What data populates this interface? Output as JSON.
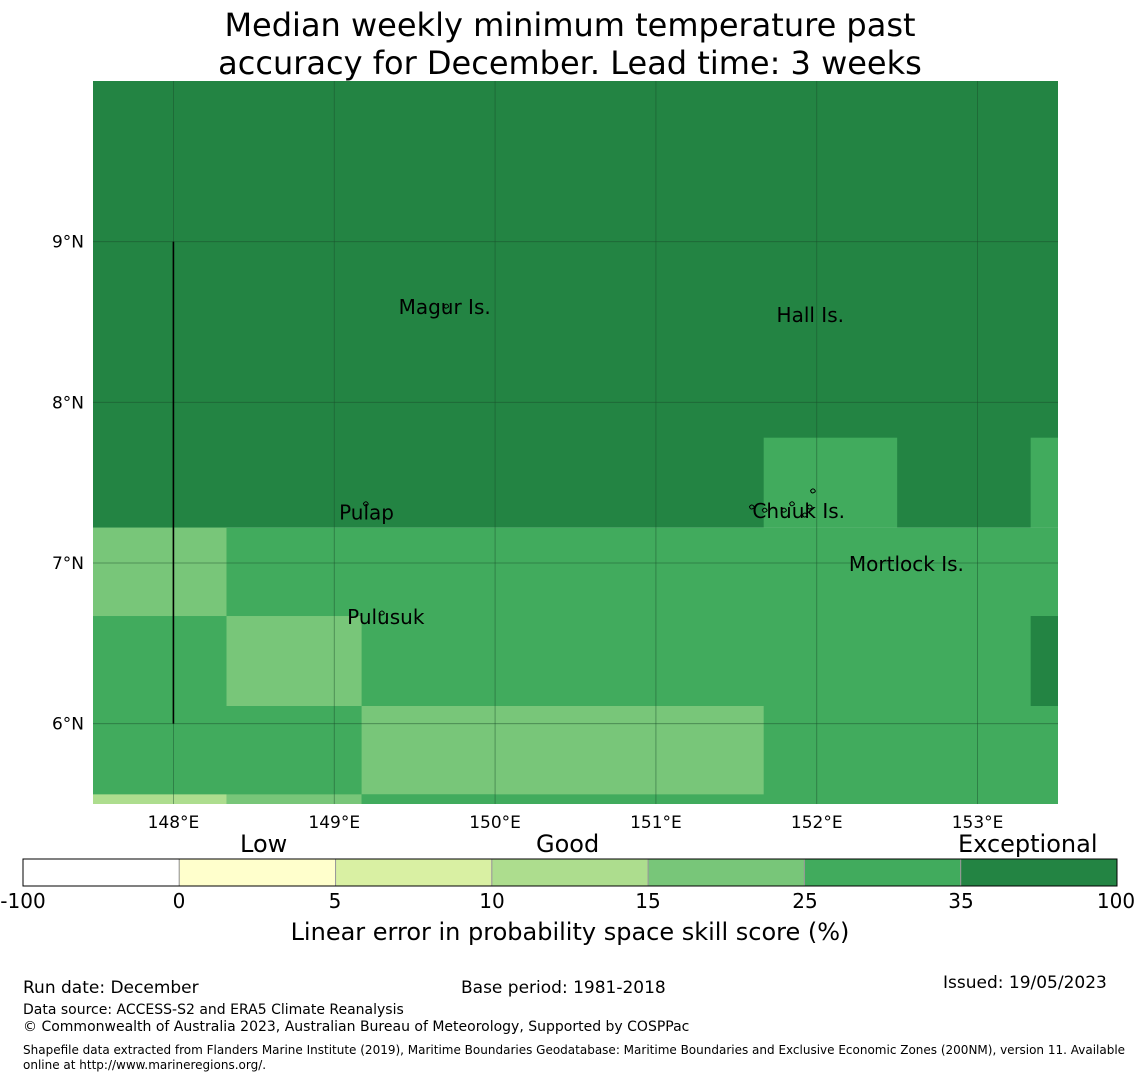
{
  "title": {
    "line1": "Median weekly minimum temperature past",
    "line2": "accuracy for December. Lead time: 3 weeks"
  },
  "map": {
    "lon_range": [
      147.5,
      153.5
    ],
    "lat_range": [
      5.5,
      10.0
    ],
    "lon_ticks": [
      {
        "value": 148,
        "label": "148°E"
      },
      {
        "value": 149,
        "label": "149°E"
      },
      {
        "value": 150,
        "label": "150°E"
      },
      {
        "value": 151,
        "label": "151°E"
      },
      {
        "value": 152,
        "label": "152°E"
      },
      {
        "value": 153,
        "label": "153°E"
      }
    ],
    "lat_ticks": [
      {
        "value": 9,
        "label": "9°N"
      },
      {
        "value": 8,
        "label": "8°N"
      },
      {
        "value": 7,
        "label": "7°N"
      },
      {
        "value": 6,
        "label": "6°N"
      }
    ],
    "colors": {
      "exceptional": "#238443",
      "skill_25_35": "#41ab5d",
      "skill_15_25": "#78c679",
      "skill_10_15": "#addd8e"
    },
    "cells": [
      {
        "lon": [
          147.5,
          153.5
        ],
        "lat": [
          7.22,
          10.0
        ],
        "skill": 40
      },
      {
        "lon": [
          151.67,
          152.5
        ],
        "lat": [
          7.22,
          7.78
        ],
        "skill": 30
      },
      {
        "lon": [
          153.33,
          153.5
        ],
        "lat": [
          7.22,
          7.78
        ],
        "skill": 30
      },
      {
        "lon": [
          147.5,
          153.5
        ],
        "lat": [
          5.5,
          7.22
        ],
        "skill": 30
      },
      {
        "lon": [
          147.5,
          148.33
        ],
        "lat": [
          6.67,
          7.22
        ],
        "skill": 20
      },
      {
        "lon": [
          148.33,
          149.17
        ],
        "lat": [
          6.11,
          6.67
        ],
        "skill": 20
      },
      {
        "lon": [
          149.17,
          151.67
        ],
        "lat": [
          5.56,
          6.11
        ],
        "skill": 20
      },
      {
        "lon": [
          153.33,
          153.5
        ],
        "lat": [
          6.11,
          6.67
        ],
        "skill": 40
      },
      {
        "lon": [
          147.5,
          148.33
        ],
        "lat": [
          5.5,
          5.56
        ],
        "skill": 12
      },
      {
        "lon": [
          148.33,
          149.17
        ],
        "lat": [
          5.5,
          5.56
        ],
        "skill": 20
      },
      {
        "lon": [
          149.17,
          150.0
        ],
        "lat": [
          5.5,
          5.56
        ],
        "skill": 30
      }
    ],
    "boundary_line": {
      "lon": 148.0,
      "lat": [
        6.0,
        9.0
      ]
    },
    "places": [
      {
        "name": "Magur Is.",
        "lon": 149.4,
        "lat": 8.55
      },
      {
        "name": "Hall Is.",
        "lon": 151.75,
        "lat": 8.5
      },
      {
        "name": "Pulap",
        "lon": 149.03,
        "lat": 7.27
      },
      {
        "name": "Chuuk Is.",
        "lon": 151.6,
        "lat": 7.28
      },
      {
        "name": "Mortlock Is.",
        "lon": 152.2,
        "lat": 6.95
      },
      {
        "name": "Pulusuk",
        "lon": 149.08,
        "lat": 6.62
      }
    ],
    "islands": [
      {
        "lon": 149.7,
        "lat": 8.6
      },
      {
        "lon": 149.2,
        "lat": 7.37
      },
      {
        "lon": 149.3,
        "lat": 6.69
      },
      {
        "lon": 151.6,
        "lat": 7.35
      },
      {
        "lon": 151.68,
        "lat": 7.33
      },
      {
        "lon": 151.85,
        "lat": 7.37
      },
      {
        "lon": 151.98,
        "lat": 7.45
      },
      {
        "lon": 151.96,
        "lat": 7.35
      },
      {
        "lon": 151.8,
        "lat": 7.33
      },
      {
        "lon": 151.93,
        "lat": 7.3
      }
    ]
  },
  "colorbar": {
    "categories": [
      "Low",
      "Good",
      "Exceptional"
    ],
    "ticks": [
      "-100",
      "0",
      "5",
      "10",
      "15",
      "25",
      "35",
      "100"
    ],
    "colors": [
      "#ffffff",
      "#ffffcc",
      "#d9f0a3",
      "#addd8e",
      "#78c679",
      "#41ab5d",
      "#238443"
    ],
    "title": "Linear error in probability space skill score (%)"
  },
  "footer": {
    "run_date": "Run date: December",
    "base_period": "Base period: 1981-2018",
    "issued": "Issued: 19/05/2023",
    "data_source": "Data source: ACCESS-S2 and ERA5 Climate Reanalysis",
    "copyright": "© Commonwealth of Australia 2023, Australian Bureau of Meteorology, Supported by COSPPac",
    "shapefile": "Shapefile data extracted from Flanders Marine Institute (2019), Maritime Boundaries Geodatabase: Maritime Boundaries and Exclusive Economic Zones (200NM), version 11. Available online at http://www.marineregions.org/."
  }
}
